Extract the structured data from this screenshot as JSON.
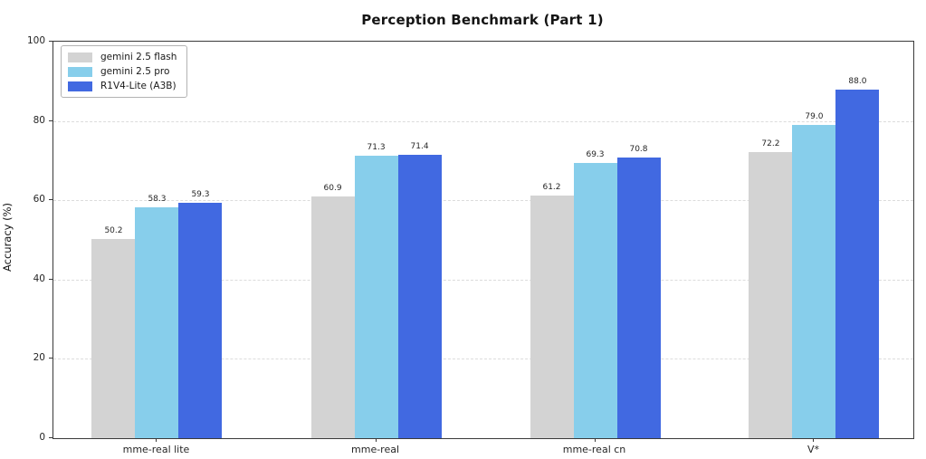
{
  "chart_data": {
    "type": "bar",
    "title": "Perception Benchmark (Part 1)",
    "xlabel": "",
    "ylabel": "Accuracy (%)",
    "categories": [
      "mme-real lite",
      "mme-real",
      "mme-real cn",
      "V*"
    ],
    "series": [
      {
        "name": "gemini 2.5 flash",
        "color": "#d3d3d3",
        "values": [
          50.2,
          60.9,
          61.2,
          72.2
        ]
      },
      {
        "name": "gemini 2.5 pro",
        "color": "#87ceeb",
        "values": [
          58.3,
          71.3,
          69.3,
          79.0
        ]
      },
      {
        "name": "R1V4-Lite (A3B)",
        "color": "#4169e1",
        "values": [
          59.3,
          71.4,
          70.8,
          88.0
        ]
      }
    ],
    "value_labels": [
      [
        "50.2",
        "60.9",
        "61.2",
        "72.2"
      ],
      [
        "58.3",
        "71.3",
        "69.3",
        "79.0"
      ],
      [
        "59.3",
        "71.4",
        "70.8",
        "88.0"
      ]
    ],
    "ylim": [
      0,
      100
    ],
    "yticks": [
      "0",
      "20",
      "40",
      "60",
      "80",
      "100"
    ],
    "grid": "horizontal-dashed",
    "legend_position": "top-left",
    "colors": {
      "background": "#ffffff",
      "axis_spine": "#3a3a3a",
      "gridline": "#dcdcdc",
      "text": "#262626"
    }
  }
}
